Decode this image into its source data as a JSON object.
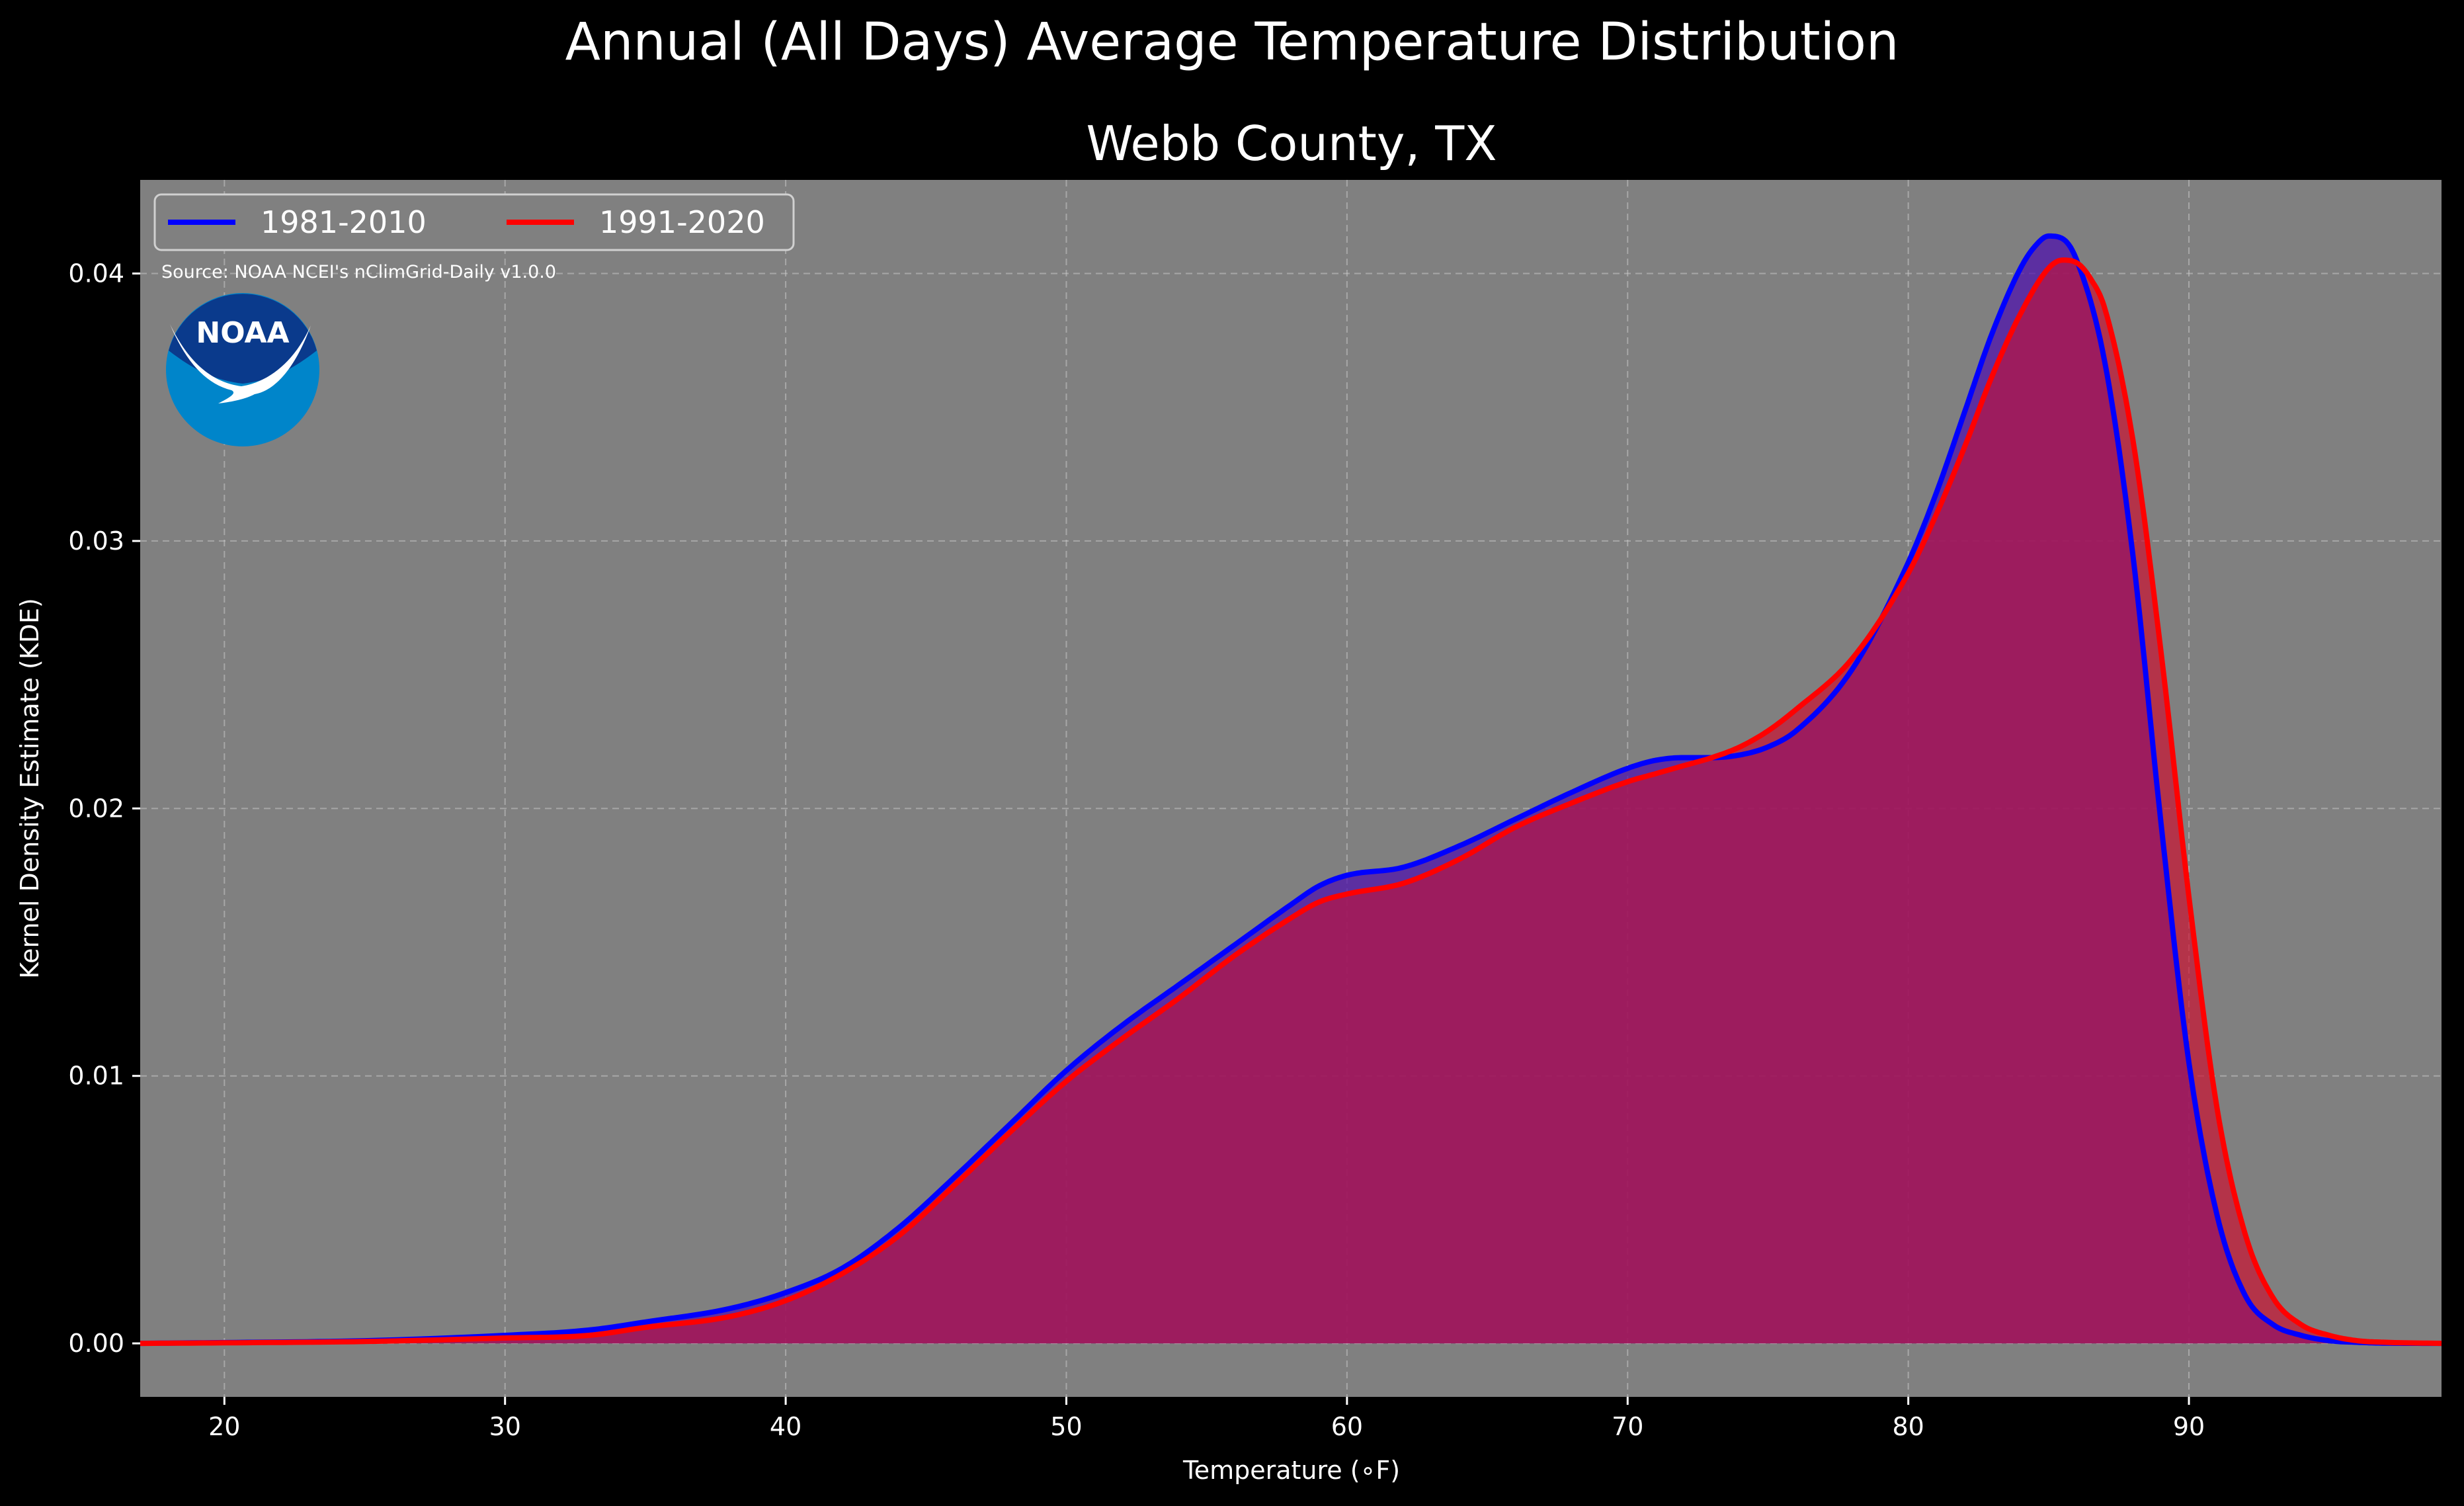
{
  "colors": {
    "background": "#000000",
    "plot_background": "#808080",
    "series_1981_2010": "#0000ff",
    "series_1991_2020": "#ff0000",
    "overlap_fill": "#9e1e5c",
    "noaa_dark_blue": "#0a3a8c",
    "noaa_light_blue": "#0085ca"
  },
  "logo": {
    "name": "noaa-logo-icon",
    "text": "NOAA"
  },
  "source_note": "Source: NOAA NCEI's nClimGrid-Daily v1.0.0",
  "chart_data": {
    "type": "area",
    "suptitle": "Annual (All Days) Average Temperature Distribution",
    "title": "Webb County, TX",
    "xlabel": "Temperature (∘F)",
    "ylabel": "Kernel Density Estimate (KDE)",
    "xlim": [
      17,
      99
    ],
    "ylim": [
      -0.002,
      0.0435
    ],
    "xticks": [
      20,
      30,
      40,
      50,
      60,
      70,
      80,
      90
    ],
    "xtick_labels": [
      "20",
      "30",
      "40",
      "50",
      "60",
      "70",
      "80",
      "90"
    ],
    "yticks": [
      0.0,
      0.01,
      0.02,
      0.03,
      0.04
    ],
    "ytick_labels": [
      "0.00",
      "0.01",
      "0.02",
      "0.03",
      "0.04"
    ],
    "grid": true,
    "legend": {
      "placement": "top-left",
      "columns": 2
    },
    "series": [
      {
        "name": "1981-2010",
        "color": "#0000ff",
        "x": [
          17,
          20,
          25,
          30,
          33,
          35,
          38,
          40,
          42,
          44,
          46,
          48,
          50,
          52,
          54,
          56,
          58,
          59,
          60,
          62,
          64,
          66,
          68,
          70,
          71,
          72,
          73,
          74,
          75,
          76,
          78,
          80,
          81,
          82,
          83,
          84,
          84.5,
          85,
          85.5,
          86,
          87,
          88,
          89,
          90,
          91,
          92,
          93,
          94,
          95,
          96,
          97,
          99
        ],
        "values": [
          0.0,
          3e-05,
          0.0001,
          0.0003,
          0.0005,
          0.0008,
          0.0013,
          0.0019,
          0.0028,
          0.0043,
          0.0062,
          0.0082,
          0.0102,
          0.0119,
          0.0134,
          0.0149,
          0.0164,
          0.0171,
          0.0175,
          0.0178,
          0.0186,
          0.0196,
          0.0206,
          0.0215,
          0.0218,
          0.0219,
          0.0219,
          0.022,
          0.0223,
          0.0229,
          0.0252,
          0.0292,
          0.0318,
          0.0348,
          0.0378,
          0.0402,
          0.041,
          0.0414,
          0.0413,
          0.0405,
          0.0367,
          0.0295,
          0.0195,
          0.0105,
          0.0048,
          0.0018,
          0.0007,
          0.0003,
          0.0001,
          4e-05,
          1e-05,
          0.0
        ]
      },
      {
        "name": "1991-2020",
        "color": "#ff0000",
        "x": [
          17,
          20,
          25,
          30,
          33,
          35,
          38,
          40,
          42,
          44,
          46,
          48,
          50,
          52,
          54,
          56,
          58,
          59,
          60,
          62,
          64,
          66,
          68,
          70,
          71,
          72,
          73,
          74,
          75,
          76,
          78,
          80,
          81,
          82,
          83,
          84,
          85,
          85.5,
          86,
          86.5,
          87,
          88,
          89,
          90,
          91,
          92,
          93,
          94,
          95,
          96,
          97,
          99
        ],
        "values": [
          0.0,
          2e-05,
          7e-05,
          0.0002,
          0.0003,
          0.0006,
          0.001,
          0.0016,
          0.0026,
          0.004,
          0.0059,
          0.0079,
          0.0098,
          0.0114,
          0.0129,
          0.0145,
          0.0159,
          0.0165,
          0.0168,
          0.0172,
          0.0181,
          0.0193,
          0.0202,
          0.021,
          0.0213,
          0.0216,
          0.0219,
          0.0223,
          0.0229,
          0.0237,
          0.0256,
          0.0288,
          0.031,
          0.0335,
          0.0362,
          0.0385,
          0.0402,
          0.0405,
          0.0404,
          0.0398,
          0.0387,
          0.0338,
          0.0259,
          0.0167,
          0.0088,
          0.0041,
          0.0017,
          0.0007,
          0.0003,
          0.0001,
          4e-05,
          0.0
        ]
      }
    ]
  }
}
